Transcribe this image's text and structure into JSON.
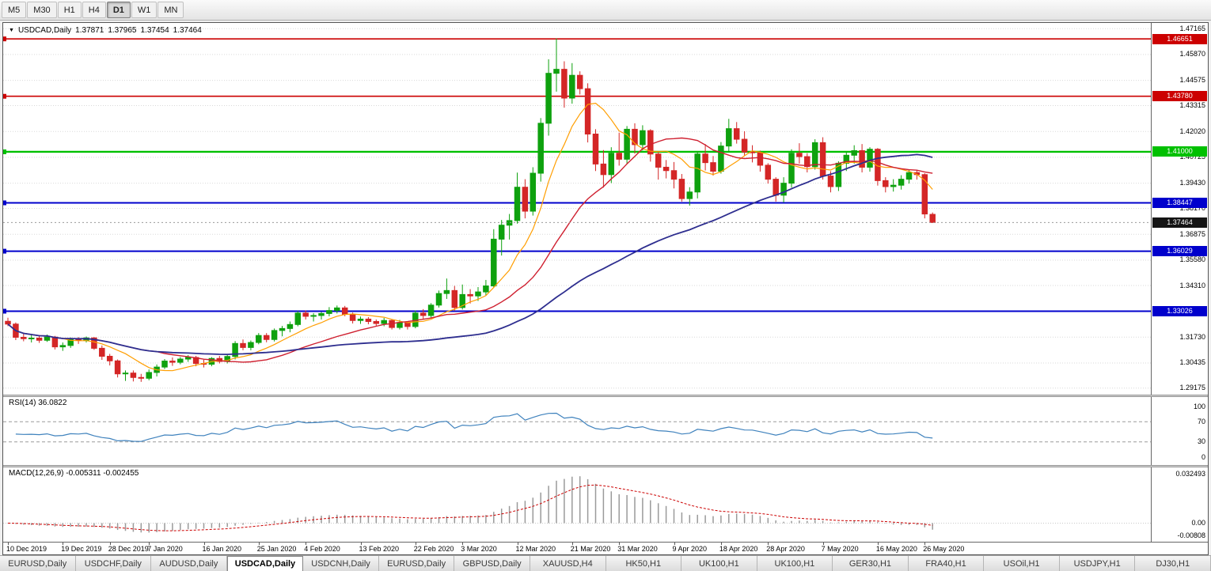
{
  "toolbar": {
    "timeframes": [
      "M5",
      "M30",
      "H1",
      "H4",
      "D1",
      "W1",
      "MN"
    ],
    "active": "D1"
  },
  "header": {
    "dropdown_icon": "▼",
    "symbol": "USDCAD,Daily",
    "open": "1.37871",
    "high": "1.37965",
    "low": "1.37454",
    "close": "1.37464"
  },
  "price_axis": {
    "grid_color": "#d9d9d9",
    "grid_labels": [
      "1.47165",
      "1.45870",
      "1.44575",
      "1.43315",
      "1.42020",
      "1.40725",
      "1.39430",
      "1.38170",
      "1.36875",
      "1.35580",
      "1.34310",
      "1.33015",
      "1.31730",
      "1.30435",
      "1.29175"
    ]
  },
  "levels": [
    {
      "label": "1.46651",
      "value": 1.46651,
      "color": "#cc0000",
      "width": 1.6
    },
    {
      "label": "1.43780",
      "value": 1.4378,
      "color": "#cc0000",
      "width": 1.6
    },
    {
      "label": "1.41000",
      "value": 1.41,
      "color": "#00c000",
      "width": 2.4
    },
    {
      "label": "1.38447",
      "value": 1.38447,
      "color": "#0000cc",
      "width": 2
    },
    {
      "label": "1.36029",
      "value": 1.36029,
      "color": "#0000cc",
      "width": 2
    },
    {
      "label": "1.33026",
      "value": 1.33026,
      "color": "#0000cc",
      "width": 2
    }
  ],
  "current_price": {
    "label": "1.37464",
    "value": 1.37464,
    "bg": "#141414"
  },
  "rsi": {
    "title": "RSI(14) 36.0822",
    "period": 14,
    "value": 36.0822,
    "color": "#3f82bd",
    "levels": [
      70,
      30
    ],
    "axis_labels": [
      {
        "v": 100,
        "label": "100"
      },
      {
        "v": 70,
        "label": "70"
      },
      {
        "v": 30,
        "label": "30"
      },
      {
        "v": 0,
        "label": "0"
      }
    ]
  },
  "macd": {
    "title": "MACD(12,26,9) -0.005311 -0.002455",
    "fast": 12,
    "slow": 26,
    "signal": 9,
    "main_value": -0.005311,
    "signal_value": -0.002455,
    "hist_color": "#9a9a9a",
    "signal_color": "#cc0000",
    "range": {
      "max": 0.032493,
      "min": -0.00808
    },
    "axis_labels": [
      {
        "v": 0.032493,
        "label": "0.032493"
      },
      {
        "v": 0,
        "label": "0.00"
      },
      {
        "v": -0.00808,
        "label": "-0.00808"
      }
    ]
  },
  "date_axis": [
    {
      "label": "10 Dec 2019",
      "index": 0
    },
    {
      "label": "19 Dec 2019",
      "index": 7
    },
    {
      "label": "28 Dec 2019",
      "index": 13
    },
    {
      "label": "7 Jan 2020",
      "index": 18
    },
    {
      "label": "16 Jan 2020",
      "index": 25
    },
    {
      "label": "25 Jan 2020",
      "index": 32
    },
    {
      "label": "4 Feb 2020",
      "index": 38
    },
    {
      "label": "13 Feb 2020",
      "index": 45
    },
    {
      "label": "22 Feb 2020",
      "index": 52
    },
    {
      "label": "3 Mar 2020",
      "index": 58
    },
    {
      "label": "12 Mar 2020",
      "index": 65
    },
    {
      "label": "21 Mar 2020",
      "index": 72
    },
    {
      "label": "31 Mar 2020",
      "index": 78
    },
    {
      "label": "9 Apr 2020",
      "index": 85
    },
    {
      "label": "18 Apr 2020",
      "index": 91
    },
    {
      "label": "28 Apr 2020",
      "index": 97
    },
    {
      "label": "7 May 2020",
      "index": 104
    },
    {
      "label": "16 May 2020",
      "index": 111
    },
    {
      "label": "26 May 2020",
      "index": 117
    }
  ],
  "tabs": {
    "active_index": 3,
    "items": [
      "EURUSD,Daily",
      "USDCHF,Daily",
      "AUDUSD,Daily",
      "USDCAD,Daily",
      "USDCNH,Daily",
      "EURUSD,Daily",
      "GBPUSD,Daily",
      "XAUUSD,H4",
      "HK50,H1",
      "UK100,H1",
      "UK100,H1",
      "GER30,H1",
      "FRA40,H1",
      "USOil,H1",
      "USDJPY,H1",
      "DJ30,H1"
    ]
  },
  "chart_data": {
    "type": "candlestick",
    "symbol": "USDCAD",
    "timeframe": "Daily",
    "price_range": {
      "min": 1.2885,
      "max": 1.4745
    },
    "bull_color": "#0ea10e",
    "bear_color": "#d42626",
    "moving_averages": [
      {
        "type": "sma",
        "period": 8,
        "color": "#ff9e00",
        "width": 1.2
      },
      {
        "type": "sma",
        "period": 20,
        "color": "#cf2030",
        "width": 1.4
      },
      {
        "type": "sma",
        "period": 50,
        "color": "#2e2e8f",
        "width": 1.8
      }
    ],
    "candles": [
      [
        1.3252,
        1.327,
        1.3228,
        1.3238
      ],
      [
        1.3238,
        1.3246,
        1.3158,
        1.3172
      ],
      [
        1.3172,
        1.319,
        1.3152,
        1.3165
      ],
      [
        1.3165,
        1.3186,
        1.3146,
        1.3168
      ],
      [
        1.3168,
        1.3181,
        1.3144,
        1.3157
      ],
      [
        1.3157,
        1.3186,
        1.3149,
        1.3173
      ],
      [
        1.3173,
        1.3179,
        1.3111,
        1.3124
      ],
      [
        1.3124,
        1.3146,
        1.3104,
        1.3131
      ],
      [
        1.3131,
        1.3171,
        1.3119,
        1.3163
      ],
      [
        1.3163,
        1.3173,
        1.3139,
        1.3157
      ],
      [
        1.3157,
        1.3176,
        1.3146,
        1.3169
      ],
      [
        1.3169,
        1.3173,
        1.3109,
        1.3117
      ],
      [
        1.3117,
        1.3131,
        1.3059,
        1.3077
      ],
      [
        1.3077,
        1.3089,
        1.3031,
        1.3054
      ],
      [
        1.3054,
        1.3061,
        1.2971,
        1.2989
      ],
      [
        1.2989,
        1.3006,
        1.2954,
        1.2993
      ],
      [
        1.2993,
        1.3006,
        1.2951,
        1.2971
      ],
      [
        1.2971,
        1.2989,
        1.2949,
        1.2967
      ],
      [
        1.2967,
        1.3011,
        1.2957,
        1.2996
      ],
      [
        1.2996,
        1.3036,
        1.2976,
        1.3023
      ],
      [
        1.3023,
        1.3063,
        1.3013,
        1.3053
      ],
      [
        1.3053,
        1.3071,
        1.3029,
        1.3047
      ],
      [
        1.3047,
        1.3073,
        1.3037,
        1.3063
      ],
      [
        1.3063,
        1.3083,
        1.3049,
        1.3071
      ],
      [
        1.3071,
        1.3079,
        1.3027,
        1.3041
      ],
      [
        1.3041,
        1.3059,
        1.3021,
        1.3037
      ],
      [
        1.3037,
        1.3073,
        1.3027,
        1.3066
      ],
      [
        1.3066,
        1.3079,
        1.3041,
        1.3051
      ],
      [
        1.3051,
        1.3086,
        1.3041,
        1.3076
      ],
      [
        1.3076,
        1.3153,
        1.3061,
        1.3141
      ],
      [
        1.3141,
        1.3161,
        1.3107,
        1.3121
      ],
      [
        1.3121,
        1.3156,
        1.3107,
        1.3146
      ],
      [
        1.3146,
        1.3193,
        1.3137,
        1.3181
      ],
      [
        1.3181,
        1.3193,
        1.3147,
        1.3161
      ],
      [
        1.3161,
        1.3216,
        1.3151,
        1.3206
      ],
      [
        1.3206,
        1.3229,
        1.3177,
        1.3216
      ],
      [
        1.3216,
        1.3251,
        1.3197,
        1.3236
      ],
      [
        1.3236,
        1.3303,
        1.3227,
        1.3293
      ],
      [
        1.3293,
        1.3306,
        1.3261,
        1.3277
      ],
      [
        1.3277,
        1.3293,
        1.3251,
        1.3281
      ],
      [
        1.3281,
        1.3299,
        1.3261,
        1.3291
      ],
      [
        1.3291,
        1.3323,
        1.3277,
        1.3306
      ],
      [
        1.3306,
        1.3331,
        1.3291,
        1.3319
      ],
      [
        1.3319,
        1.3329,
        1.3277,
        1.3287
      ],
      [
        1.3287,
        1.3296,
        1.3241,
        1.3256
      ],
      [
        1.3256,
        1.3276,
        1.3239,
        1.3263
      ],
      [
        1.3263,
        1.3273,
        1.3237,
        1.3251
      ],
      [
        1.3251,
        1.3261,
        1.3227,
        1.3241
      ],
      [
        1.3241,
        1.3269,
        1.3227,
        1.3256
      ],
      [
        1.3256,
        1.3263,
        1.3211,
        1.3221
      ],
      [
        1.3221,
        1.3259,
        1.3211,
        1.3246
      ],
      [
        1.3246,
        1.3253,
        1.3211,
        1.3226
      ],
      [
        1.3226,
        1.3306,
        1.3217,
        1.3293
      ],
      [
        1.3293,
        1.3313,
        1.3261,
        1.3281
      ],
      [
        1.3281,
        1.3343,
        1.3271,
        1.3333
      ],
      [
        1.3333,
        1.3406,
        1.3321,
        1.3391
      ],
      [
        1.3391,
        1.3466,
        1.3364,
        1.3406
      ],
      [
        1.3406,
        1.3429,
        1.3304,
        1.3321
      ],
      [
        1.3321,
        1.3436,
        1.3311,
        1.3386
      ],
      [
        1.3386,
        1.3413,
        1.3341,
        1.3379
      ],
      [
        1.3379,
        1.3423,
        1.3354,
        1.3399
      ],
      [
        1.3399,
        1.3459,
        1.3381,
        1.3429
      ],
      [
        1.3429,
        1.3713,
        1.3421,
        1.3663
      ],
      [
        1.3663,
        1.3759,
        1.3581,
        1.3733
      ],
      [
        1.3733,
        1.3789,
        1.3661,
        1.3756
      ],
      [
        1.3756,
        1.3996,
        1.3741,
        1.3923
      ],
      [
        1.3923,
        1.3963,
        1.3767,
        1.3803
      ],
      [
        1.3803,
        1.4023,
        1.3781,
        1.3993
      ],
      [
        1.3993,
        1.4269,
        1.3951,
        1.4243
      ],
      [
        1.4243,
        1.4563,
        1.4181,
        1.4493
      ],
      [
        1.4493,
        1.4668,
        1.4401,
        1.4513
      ],
      [
        1.4513,
        1.4553,
        1.4321,
        1.4369
      ],
      [
        1.4369,
        1.4544,
        1.4341,
        1.4483
      ],
      [
        1.4483,
        1.4503,
        1.4387,
        1.4416
      ],
      [
        1.4416,
        1.4443,
        1.4147,
        1.4189
      ],
      [
        1.4189,
        1.4213,
        1.4004,
        1.4039
      ],
      [
        1.4039,
        1.4109,
        1.3921,
        1.3986
      ],
      [
        1.3986,
        1.4123,
        1.3944,
        1.4093
      ],
      [
        1.4093,
        1.4196,
        1.4031,
        1.4063
      ],
      [
        1.4063,
        1.4229,
        1.4041,
        1.4213
      ],
      [
        1.4213,
        1.4243,
        1.4091,
        1.4136
      ],
      [
        1.4136,
        1.4233,
        1.4107,
        1.4206
      ],
      [
        1.4206,
        1.4213,
        1.4051,
        1.4089
      ],
      [
        1.4089,
        1.4103,
        1.3961,
        1.4023
      ],
      [
        1.4023,
        1.4059,
        1.3967,
        1.4006
      ],
      [
        1.4006,
        1.4049,
        1.3917,
        1.3963
      ],
      [
        1.3963,
        1.3989,
        1.3851,
        1.3866
      ],
      [
        1.3866,
        1.3923,
        1.3831,
        1.3899
      ],
      [
        1.3899,
        1.4103,
        1.3867,
        1.4089
      ],
      [
        1.4089,
        1.4139,
        1.4007,
        1.4046
      ],
      [
        1.4046,
        1.4079,
        1.3981,
        1.4003
      ],
      [
        1.4003,
        1.4149,
        1.3991,
        1.4129
      ],
      [
        1.4129,
        1.4265,
        1.4101,
        1.4216
      ],
      [
        1.4216,
        1.4249,
        1.4141,
        1.4163
      ],
      [
        1.4163,
        1.4203,
        1.4081,
        1.4099
      ],
      [
        1.4099,
        1.4133,
        1.4047,
        1.4096
      ],
      [
        1.4096,
        1.4106,
        1.4001,
        1.4033
      ],
      [
        1.4033,
        1.4043,
        1.3941,
        1.3963
      ],
      [
        1.3963,
        1.3973,
        1.3851,
        1.3883
      ],
      [
        1.3883,
        1.3973,
        1.3847,
        1.3943
      ],
      [
        1.3943,
        1.4113,
        1.3921,
        1.4093
      ],
      [
        1.4093,
        1.4143,
        1.4041,
        1.4076
      ],
      [
        1.4076,
        1.4093,
        1.3997,
        1.4026
      ],
      [
        1.4026,
        1.4163,
        1.4011,
        1.4146
      ],
      [
        1.4146,
        1.4173,
        1.3961,
        1.3979
      ],
      [
        1.3979,
        1.4003,
        1.3897,
        1.3926
      ],
      [
        1.3926,
        1.4053,
        1.3904,
        1.4043
      ],
      [
        1.4043,
        1.4099,
        1.4004,
        1.4083
      ],
      [
        1.4083,
        1.4133,
        1.4041,
        1.4106
      ],
      [
        1.4106,
        1.4139,
        1.3997,
        1.4023
      ],
      [
        1.4023,
        1.4123,
        1.4001,
        1.4113
      ],
      [
        1.4113,
        1.4119,
        1.3931,
        1.3956
      ],
      [
        1.3956,
        1.3973,
        1.3897,
        1.3926
      ],
      [
        1.3926,
        1.3963,
        1.3901,
        1.3933
      ],
      [
        1.3933,
        1.3983,
        1.3911,
        1.3963
      ],
      [
        1.3963,
        1.4013,
        1.3941,
        1.3996
      ],
      [
        1.3996,
        1.4009,
        1.3961,
        1.3986
      ],
      [
        1.3986,
        1.3993,
        1.3767,
        1.3789
      ],
      [
        1.37871,
        1.37965,
        1.37454,
        1.37464
      ]
    ]
  }
}
